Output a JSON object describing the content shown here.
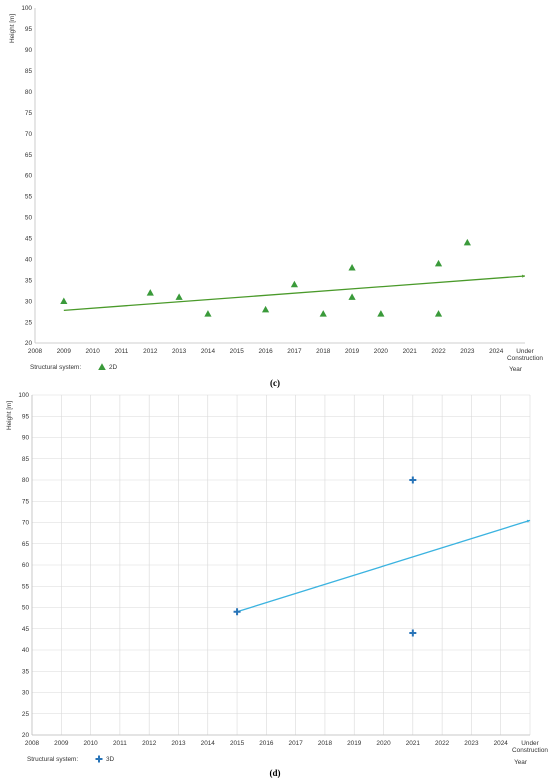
{
  "chart_data": [
    {
      "type": "scatter",
      "panel_label": "(c)",
      "ylabel": "Height [m]",
      "xlabel": "Year",
      "x_categories": [
        "2008",
        "2009",
        "2010",
        "2011",
        "2012",
        "2013",
        "2014",
        "2015",
        "2016",
        "2017",
        "2018",
        "2019",
        "2020",
        "2021",
        "2022",
        "2023",
        "2024",
        "Under Construction"
      ],
      "ylim": [
        20,
        100
      ],
      "yticks": [
        20,
        25,
        30,
        35,
        40,
        45,
        50,
        55,
        60,
        65,
        70,
        75,
        80,
        85,
        90,
        95,
        100
      ],
      "grid": false,
      "legend_label": "Structural system:",
      "legend_placement": "bottom-left",
      "series": [
        {
          "name": "2D",
          "marker": "triangle",
          "color": "#3a9a3a",
          "points": [
            {
              "x": "2009",
              "y": 30
            },
            {
              "x": "2012",
              "y": 32
            },
            {
              "x": "2013",
              "y": 31
            },
            {
              "x": "2014",
              "y": 27
            },
            {
              "x": "2016",
              "y": 28
            },
            {
              "x": "2017",
              "y": 34
            },
            {
              "x": "2018",
              "y": 27
            },
            {
              "x": "2019",
              "y": 38
            },
            {
              "x": "2019",
              "y": 31
            },
            {
              "x": "2020",
              "y": 27
            },
            {
              "x": "2022",
              "y": 39
            },
            {
              "x": "2022",
              "y": 27
            },
            {
              "x": "2023",
              "y": 44
            }
          ],
          "trendline": {
            "color": "#4a9a2a",
            "from": {
              "x": "2009",
              "y": 27.8
            },
            "to": {
              "x": "Under Construction",
              "y": 36
            }
          }
        }
      ]
    },
    {
      "type": "scatter",
      "panel_label": "(d)",
      "ylabel": "Height [m]",
      "xlabel": "Year",
      "x_categories": [
        "2008",
        "2009",
        "2010",
        "2011",
        "2012",
        "2013",
        "2014",
        "2015",
        "2016",
        "2017",
        "2018",
        "2019",
        "2020",
        "2021",
        "2022",
        "2023",
        "2024",
        "Under Construction"
      ],
      "ylim": [
        20,
        100
      ],
      "yticks": [
        20,
        25,
        30,
        35,
        40,
        45,
        50,
        55,
        60,
        65,
        70,
        75,
        80,
        85,
        90,
        95,
        100
      ],
      "grid": true,
      "legend_label": "Structural system:",
      "legend_placement": "bottom-left",
      "series": [
        {
          "name": "3D",
          "marker": "plus",
          "color": "#2874b8",
          "points": [
            {
              "x": "2015",
              "y": 49
            },
            {
              "x": "2021",
              "y": 80
            },
            {
              "x": "2021",
              "y": 44
            }
          ],
          "trendline": {
            "color": "#3bb3e0",
            "from": {
              "x": "2015",
              "y": 49
            },
            "to": {
              "x": "Under Construction",
              "y": 70.5
            }
          }
        }
      ]
    }
  ]
}
